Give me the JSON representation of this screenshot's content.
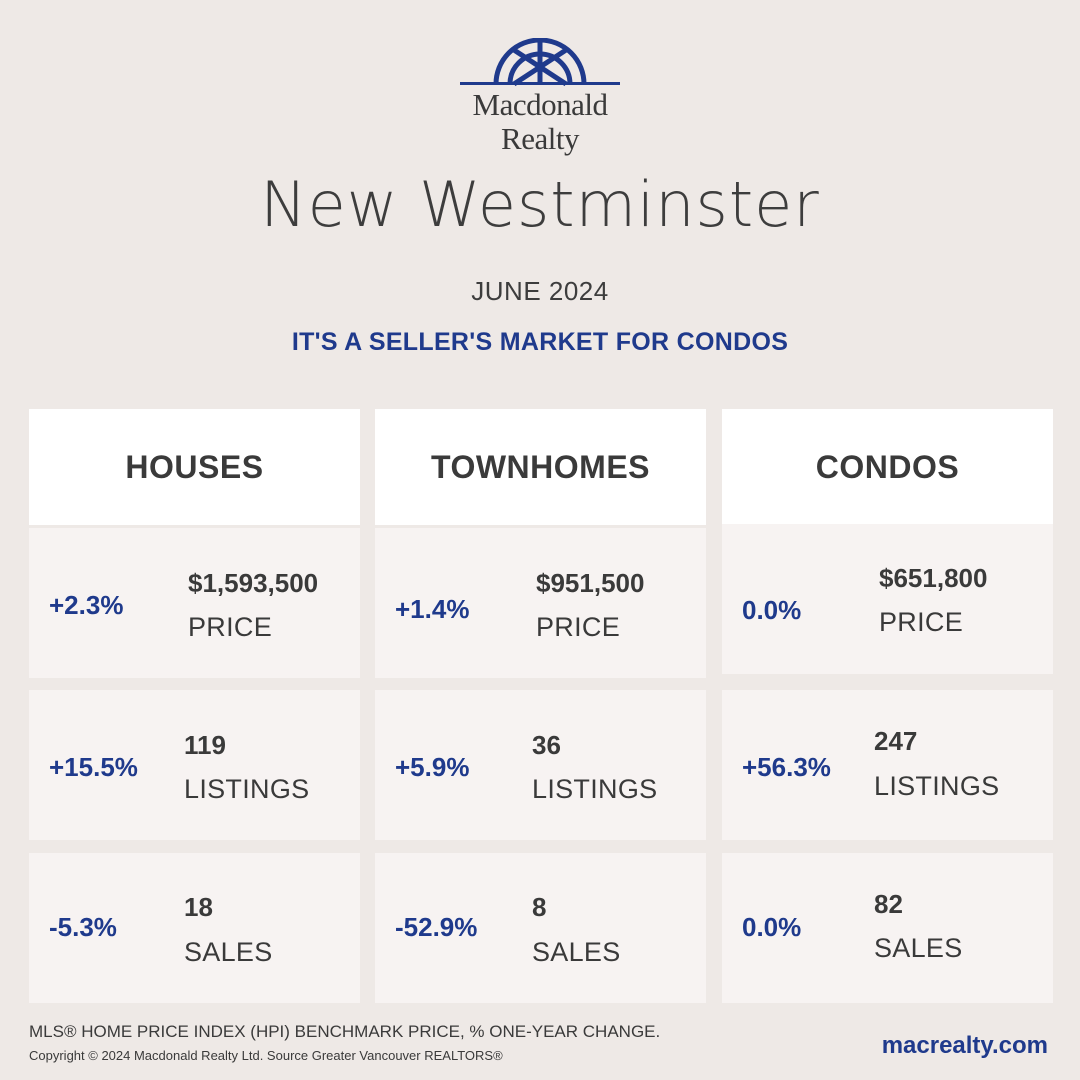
{
  "brand": {
    "line1": "Macdonald",
    "line2": "Realty",
    "color": "#1f3a8c"
  },
  "header": {
    "city": "New Westminster",
    "month": "JUNE 2024",
    "tagline": "IT'S A SELLER'S MARKET FOR CONDOS"
  },
  "columns": [
    {
      "title": "HOUSES",
      "price": {
        "change": "+2.3%",
        "value": "$1,593,500",
        "label": "PRICE"
      },
      "listings": {
        "change": "+15.5%",
        "value": "119",
        "label": "LISTINGS"
      },
      "sales": {
        "change": "-5.3%",
        "value": "18",
        "label": "SALES"
      }
    },
    {
      "title": "TOWNHOMES",
      "price": {
        "change": "+1.4%",
        "value": "$951,500",
        "label": "PRICE"
      },
      "listings": {
        "change": "+5.9%",
        "value": "36",
        "label": "LISTINGS"
      },
      "sales": {
        "change": "-52.9%",
        "value": "8",
        "label": "SALES"
      }
    },
    {
      "title": "CONDOS",
      "price": {
        "change": "0.0%",
        "value": "$651,800",
        "label": "PRICE"
      },
      "listings": {
        "change": "+56.3%",
        "value": "247",
        "label": "LISTINGS"
      },
      "sales": {
        "change": "0.0%",
        "value": "82",
        "label": "SALES"
      }
    }
  ],
  "footer": {
    "note": "MLS® HOME PRICE INDEX (HPI) BENCHMARK PRICE, % ONE-YEAR CHANGE.",
    "copyright": "Copyright © 2024 Macdonald Realty Ltd. Source Greater Vancouver REALTORS®",
    "website": "macrealty.com"
  }
}
